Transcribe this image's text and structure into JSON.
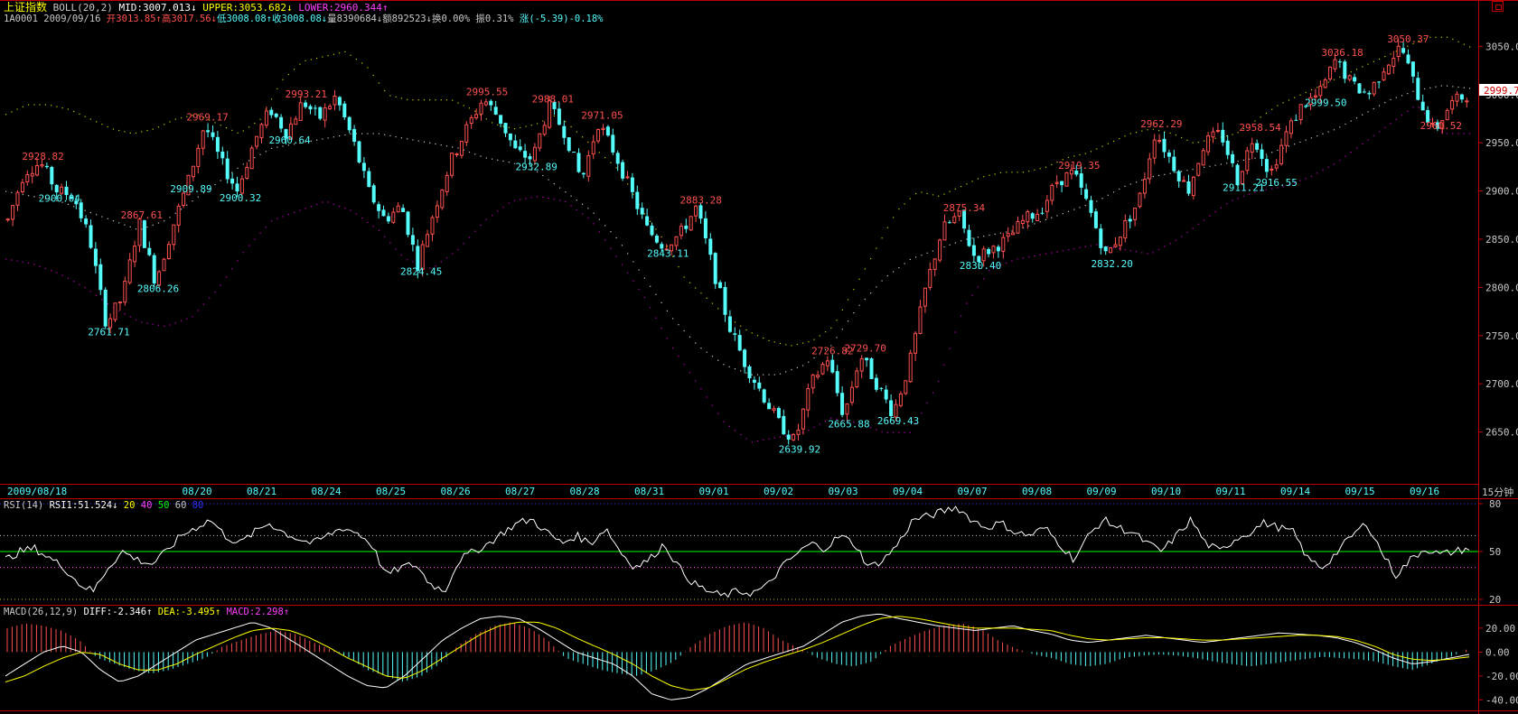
{
  "header": {
    "index_name": "上证指数",
    "boll_label": "BOLL(20,2)",
    "mid": "MID:3007.013",
    "mid_arrow": "↓",
    "upper": "UPPER:3053.682",
    "upper_arrow": "↓",
    "lower": "LOWER:2960.344",
    "lower_arrow": "↑"
  },
  "quote_line": {
    "code_date": "1A0001 2009/09/16",
    "open": "开3013.85↑",
    "high": "高3017.56↓",
    "low": "低3008.08↑",
    "close": "收3008.08↓",
    "volume": "量8390684↓",
    "amount": "额892523↓",
    "turnover": "换0.00%",
    "amplitude": "振0.31%",
    "change": "涨(-5.39)-0.18%"
  },
  "rsi_header": {
    "label": "RSI(14)",
    "value": "RSI1:51.524",
    "arrow": "↓",
    "levels": [
      "20",
      "40",
      "50",
      "60",
      "80"
    ]
  },
  "macd_header": {
    "label": "MACD(26,12,9)",
    "diff": "DIFF:-2.346",
    "diff_arrow": "↑",
    "dea": "DEA:-3.495",
    "dea_arrow": "↑",
    "macd": "MACD:2.298",
    "macd_arrow": "↑"
  },
  "period_label": "15分钟",
  "current_price_tag": "2999.7",
  "colors": {
    "bg": "#000000",
    "up": "#ff5050",
    "down": "#54fcfc",
    "frame": "#c00000",
    "upper_band": "#c8c800",
    "mid_band": "#c8c8c8",
    "lower_band": "#c000c0",
    "rsi_line": "#ffffff",
    "rsi_mid": "#00ff00",
    "macd_diff": "#ffffff",
    "macd_dea": "#ffff00",
    "high_label": "#ff5050",
    "low_label": "#54fcfc",
    "axis_text": "#c8c8c8",
    "date_text": "#54fcfc"
  },
  "chart_data": [
    {
      "type": "candlestick",
      "x_labels": [
        "2009/08/18",
        "08/20",
        "08/21",
        "08/24",
        "08/25",
        "08/26",
        "08/27",
        "08/28",
        "08/31",
        "09/01",
        "09/02",
        "09/03",
        "09/04",
        "09/07",
        "09/08",
        "09/09",
        "09/10",
        "09/11",
        "09/14",
        "09/15",
        "09/16"
      ],
      "ylim": [
        2600,
        3070
      ],
      "y_ticks": [
        "3050.0",
        "3000.0",
        "2950.0",
        "2900.0",
        "2850.0",
        "2800.0",
        "2750.0",
        "2700.0",
        "2650.0"
      ],
      "close_path": [
        2870,
        2920,
        2929,
        2900,
        2895,
        2850,
        2762,
        2790,
        2868,
        2806,
        2860,
        2910,
        2969,
        2930,
        2900,
        2950,
        2985,
        2960,
        2993,
        2975,
        2998,
        2955,
        2900,
        2870,
        2885,
        2824,
        2880,
        2930,
        2965,
        2996,
        2975,
        2940,
        2933,
        2988,
        2960,
        2910,
        2971,
        2940,
        2900,
        2860,
        2843,
        2855,
        2883,
        2820,
        2760,
        2720,
        2690,
        2660,
        2640,
        2700,
        2727,
        2666,
        2730,
        2700,
        2669,
        2720,
        2800,
        2860,
        2875,
        2830,
        2840,
        2850,
        2870,
        2880,
        2910,
        2919,
        2880,
        2832,
        2860,
        2890,
        2962,
        2930,
        2900,
        2950,
        2960,
        2911,
        2958,
        2917,
        2960,
        2990,
        3000,
        3036,
        3010,
        3000,
        3030,
        3050,
        3000,
        2961,
        2990,
        3000
      ],
      "upper_band_path": [
        2980,
        2990,
        2990,
        2985,
        2975,
        2965,
        2960,
        2965,
        2975,
        2980,
        2970,
        2960,
        2975,
        3015,
        3035,
        3040,
        3045,
        3030,
        3000,
        2995,
        2995,
        2995,
        2985,
        2970,
        2965,
        2970,
        2980,
        2960,
        2940,
        2920,
        2880,
        2850,
        2810,
        2790,
        2770,
        2755,
        2745,
        2740,
        2745,
        2760,
        2800,
        2840,
        2880,
        2900,
        2895,
        2905,
        2915,
        2920,
        2920,
        2925,
        2935,
        2940,
        2950,
        2960,
        2965,
        2960,
        2950,
        2955,
        2960,
        2975,
        2990,
        3000,
        3010,
        3020,
        3030,
        3040,
        3050,
        3060,
        3060,
        3050
      ],
      "mid_band_path": [
        2900,
        2895,
        2890,
        2880,
        2870,
        2860,
        2870,
        2890,
        2910,
        2930,
        2945,
        2950,
        2955,
        2960,
        2960,
        2955,
        2950,
        2945,
        2935,
        2930,
        2920,
        2900,
        2880,
        2850,
        2810,
        2770,
        2740,
        2720,
        2710,
        2710,
        2720,
        2740,
        2780,
        2810,
        2830,
        2840,
        2850,
        2855,
        2860,
        2870,
        2880,
        2890,
        2905,
        2915,
        2920,
        2925,
        2930,
        2935,
        2945,
        2955,
        2965,
        2980,
        2995,
        3005,
        3010,
        3007
      ],
      "lower_band_path": [
        2830,
        2825,
        2815,
        2800,
        2780,
        2765,
        2760,
        2770,
        2800,
        2840,
        2870,
        2880,
        2890,
        2880,
        2860,
        2830,
        2820,
        2840,
        2870,
        2890,
        2895,
        2890,
        2870,
        2830,
        2790,
        2740,
        2700,
        2660,
        2640,
        2645,
        2650,
        2665,
        2660,
        2650,
        2650,
        2700,
        2780,
        2820,
        2830,
        2835,
        2840,
        2845,
        2840,
        2835,
        2850,
        2870,
        2890,
        2900,
        2905,
        2915,
        2930,
        2950,
        2970,
        2990,
        2960,
        2960
      ],
      "high_labels": [
        {
          "value": "2928.82"
        },
        {
          "value": "2867.61"
        },
        {
          "value": "2969.17"
        },
        {
          "value": "2993.21"
        },
        {
          "value": "2995.55"
        },
        {
          "value": "2988.01"
        },
        {
          "value": "2971.05"
        },
        {
          "value": "2883.28"
        },
        {
          "value": "2726.82"
        },
        {
          "value": "2729.70"
        },
        {
          "value": "2875.34"
        },
        {
          "value": "2919.35"
        },
        {
          "value": "2962.29"
        },
        {
          "value": "2960.52"
        },
        {
          "value": "2958.54"
        },
        {
          "value": "3036.18"
        },
        {
          "value": "3050.37"
        }
      ],
      "low_labels": [
        {
          "value": "2806.26"
        },
        {
          "value": "2761.71"
        },
        {
          "value": "2900.04"
        },
        {
          "value": "2824.45"
        },
        {
          "value": "2932.89"
        },
        {
          "value": "2909.89"
        },
        {
          "value": "2843.11"
        },
        {
          "value": "2639.92"
        },
        {
          "value": "2665.88"
        },
        {
          "value": "2669.43"
        },
        {
          "value": "2830.40"
        },
        {
          "value": "2832.20"
        },
        {
          "value": "2900.32"
        },
        {
          "value": "2911.21"
        },
        {
          "value": "2916.55"
        },
        {
          "value": "2999.50"
        },
        {
          "value": "2960.64"
        }
      ]
    },
    {
      "type": "line",
      "name": "RSI1",
      "ylim": [
        20,
        80
      ],
      "y_ticks": [
        "80",
        "50",
        "20"
      ],
      "values_path": [
        45,
        50,
        52,
        46,
        40,
        30,
        25,
        40,
        50,
        45,
        42,
        50,
        60,
        65,
        70,
        60,
        55,
        62,
        68,
        62,
        58,
        55,
        60,
        65,
        62,
        55,
        35,
        40,
        42,
        30,
        25,
        45,
        50,
        55,
        62,
        68,
        70,
        62,
        55,
        60,
        55,
        65,
        50,
        40,
        45,
        55,
        40,
        30,
        25,
        22,
        25,
        24,
        28,
        40,
        48,
        55,
        52,
        60,
        55,
        40,
        45,
        55,
        70,
        72,
        75,
        78,
        70,
        65,
        68,
        62,
        60,
        65,
        55,
        45,
        60,
        70,
        65,
        62,
        55,
        50,
        60,
        70,
        55,
        50,
        58,
        62,
        68,
        65,
        62,
        45,
        40,
        50,
        60,
        68,
        50,
        35,
        45,
        52,
        48,
        50,
        52
      ]
    },
    {
      "type": "bar+line",
      "name": "MACD",
      "ylim": [
        -45,
        35
      ],
      "y_ticks": [
        "20.00",
        "0.00",
        "-20.00",
        "-40.00"
      ],
      "macd_bar_path": [
        20,
        24,
        22,
        18,
        10,
        -5,
        -10,
        -15,
        -18,
        -15,
        -10,
        -5,
        5,
        10,
        15,
        18,
        15,
        8,
        2,
        -5,
        -15,
        -20,
        -25,
        -20,
        -10,
        5,
        15,
        22,
        25,
        20,
        10,
        -5,
        -10,
        -15,
        -18,
        -20,
        -15,
        -8,
        5,
        15,
        22,
        25,
        20,
        10,
        3,
        -5,
        -10,
        -12,
        -8,
        5,
        12,
        18,
        22,
        24,
        20,
        10,
        3,
        -2,
        -5,
        -10,
        -12,
        -10,
        -5,
        -3,
        -2,
        -3,
        -5,
        -8,
        -10,
        -12,
        -10,
        -8,
        -6,
        -4,
        -5,
        -6,
        -8,
        -12,
        -15,
        -10,
        -5,
        2
      ],
      "diff_path": [
        -20,
        -10,
        0,
        5,
        0,
        -15,
        -25,
        -20,
        -10,
        0,
        10,
        15,
        20,
        25,
        20,
        10,
        0,
        -10,
        -20,
        -28,
        -30,
        -20,
        -5,
        10,
        20,
        28,
        30,
        28,
        20,
        10,
        0,
        -5,
        -10,
        -20,
        -35,
        -40,
        -38,
        -30,
        -20,
        -10,
        -5,
        0,
        5,
        15,
        25,
        30,
        32,
        28,
        25,
        22,
        20,
        18,
        20,
        22,
        18,
        15,
        10,
        8,
        10,
        12,
        14,
        12,
        10,
        8,
        10,
        12,
        14,
        16,
        15,
        14,
        12,
        8,
        2,
        -5,
        -10,
        -8,
        -5,
        -2
      ],
      "dea_path": [
        -25,
        -20,
        -12,
        -5,
        0,
        -2,
        -10,
        -15,
        -15,
        -10,
        -2,
        5,
        12,
        18,
        20,
        18,
        12,
        4,
        -5,
        -12,
        -20,
        -22,
        -15,
        -5,
        5,
        15,
        22,
        25,
        25,
        20,
        12,
        5,
        -2,
        -10,
        -20,
        -28,
        -32,
        -30,
        -22,
        -14,
        -8,
        -3,
        2,
        8,
        15,
        22,
        28,
        30,
        28,
        25,
        22,
        20,
        20,
        20,
        19,
        18,
        14,
        11,
        10,
        11,
        12,
        12,
        11,
        10,
        10,
        11,
        12,
        13,
        14,
        14,
        13,
        10,
        5,
        -2,
        -6,
        -7,
        -6,
        -4
      ]
    }
  ]
}
